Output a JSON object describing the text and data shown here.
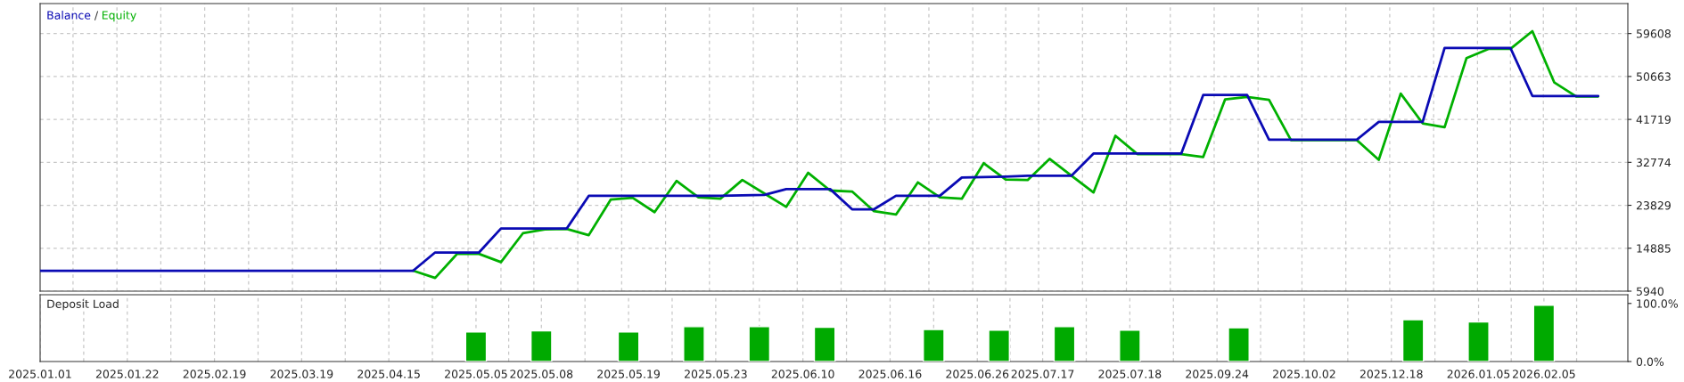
{
  "chart_data": [
    {
      "type": "line",
      "annotations": [
        "/"
      ],
      "grid": true,
      "tick_labels": "y",
      "categories": [
        null,
        null,
        null,
        null,
        null,
        null,
        null,
        null,
        null,
        null,
        null,
        null,
        null,
        null,
        null,
        null,
        null,
        null,
        null,
        null,
        null,
        null,
        null,
        null,
        null,
        null,
        null,
        null,
        null,
        null,
        null,
        null,
        null,
        null,
        null,
        null,
        null,
        null,
        null,
        null,
        null,
        null,
        null,
        null,
        null,
        null,
        null,
        null,
        null,
        null,
        null,
        null,
        null,
        null,
        null,
        null,
        null,
        null,
        null,
        null,
        null,
        null,
        null,
        null,
        null,
        null,
        null,
        null,
        null,
        null,
        null,
        null
      ],
      "ylim": [
        5940,
        65850
      ],
      "yticks": [
        5940,
        14885,
        23829,
        32774,
        41719,
        50663,
        59608
      ],
      "series": [
        {
          "name": "Balance",
          "color": "#0a0ab4",
          "values": [
            10200,
            10200,
            10200,
            10200,
            10200,
            10200,
            10200,
            10200,
            10200,
            10200,
            10200,
            10200,
            10200,
            10200,
            10200,
            10200,
            10200,
            10200,
            14000,
            14000,
            14000,
            19000,
            19000,
            19000,
            19000,
            25800,
            25800,
            25800,
            25800,
            25800,
            25800,
            25800,
            25900,
            26000,
            27200,
            27200,
            27200,
            23000,
            23000,
            25800,
            25800,
            25800,
            29600,
            29700,
            29800,
            30000,
            30000,
            30000,
            34600,
            34600,
            34600,
            34600,
            34600,
            46800,
            46800,
            46800,
            37500,
            37500,
            37500,
            37500,
            37500,
            41200,
            41200,
            41200,
            56600,
            56600,
            56600,
            56600,
            46600,
            46600,
            46600,
            46600
          ]
        },
        {
          "name": "Equity",
          "color": "#00b000",
          "values": [
            null,
            null,
            null,
            null,
            null,
            null,
            null,
            null,
            null,
            null,
            null,
            null,
            null,
            null,
            null,
            null,
            null,
            10200,
            8700,
            13700,
            13700,
            12000,
            18000,
            18800,
            18900,
            17600,
            25000,
            25400,
            22400,
            28900,
            25500,
            25200,
            29100,
            26300,
            23500,
            30600,
            26900,
            26700,
            22600,
            21900,
            28600,
            25500,
            25200,
            32600,
            29200,
            29100,
            33500,
            30000,
            26500,
            38300,
            34500,
            34500,
            34500,
            33900,
            45900,
            46400,
            45800,
            37400,
            37400,
            37400,
            37400,
            33300,
            47100,
            40900,
            40100,
            54500,
            56400,
            56400,
            60100,
            49400,
            46500,
            46500
          ]
        }
      ]
    },
    {
      "type": "bar",
      "title": "Deposit Load",
      "grid": "x",
      "color": "#00aa00",
      "categories": [
        "2025.01.01",
        null,
        null,
        null,
        "2025.01.22",
        null,
        null,
        null,
        "2025.02.19",
        null,
        null,
        null,
        "2025.03.19",
        null,
        null,
        null,
        "2025.04.15",
        null,
        null,
        null,
        "2025.05.05",
        null,
        null,
        "2025.05.08",
        null,
        null,
        null,
        "2025.05.19",
        null,
        null,
        null,
        "2025.05.23",
        null,
        null,
        null,
        "2025.06.10",
        null,
        null,
        null,
        "2025.06.16",
        null,
        null,
        null,
        "2025.06.26",
        null,
        null,
        "2025.07.17",
        null,
        null,
        null,
        "2025.07.18",
        null,
        null,
        null,
        "2025.09.24",
        null,
        null,
        null,
        "2025.10.02",
        null,
        null,
        null,
        "2025.12.18",
        null,
        null,
        null,
        "2026.01.05",
        null,
        null,
        "2026.02.05",
        null,
        null,
        null
      ],
      "ylim": [
        0,
        115
      ],
      "yticks": [
        {
          "value": 0,
          "label": "0.0%"
        },
        {
          "value": 100,
          "label": "100.0%"
        }
      ],
      "values": [
        null,
        null,
        null,
        null,
        null,
        null,
        null,
        null,
        null,
        null,
        null,
        null,
        null,
        null,
        null,
        null,
        null,
        null,
        null,
        null,
        51,
        null,
        null,
        53,
        null,
        null,
        null,
        51,
        null,
        null,
        60,
        null,
        null,
        60,
        null,
        null,
        59,
        null,
        null,
        null,
        null,
        55,
        null,
        null,
        54,
        null,
        null,
        60,
        null,
        null,
        54,
        null,
        null,
        null,
        null,
        58,
        null,
        null,
        null,
        null,
        null,
        null,
        null,
        72,
        null,
        null,
        68,
        null,
        null,
        97,
        null,
        null,
        null
      ]
    }
  ]
}
